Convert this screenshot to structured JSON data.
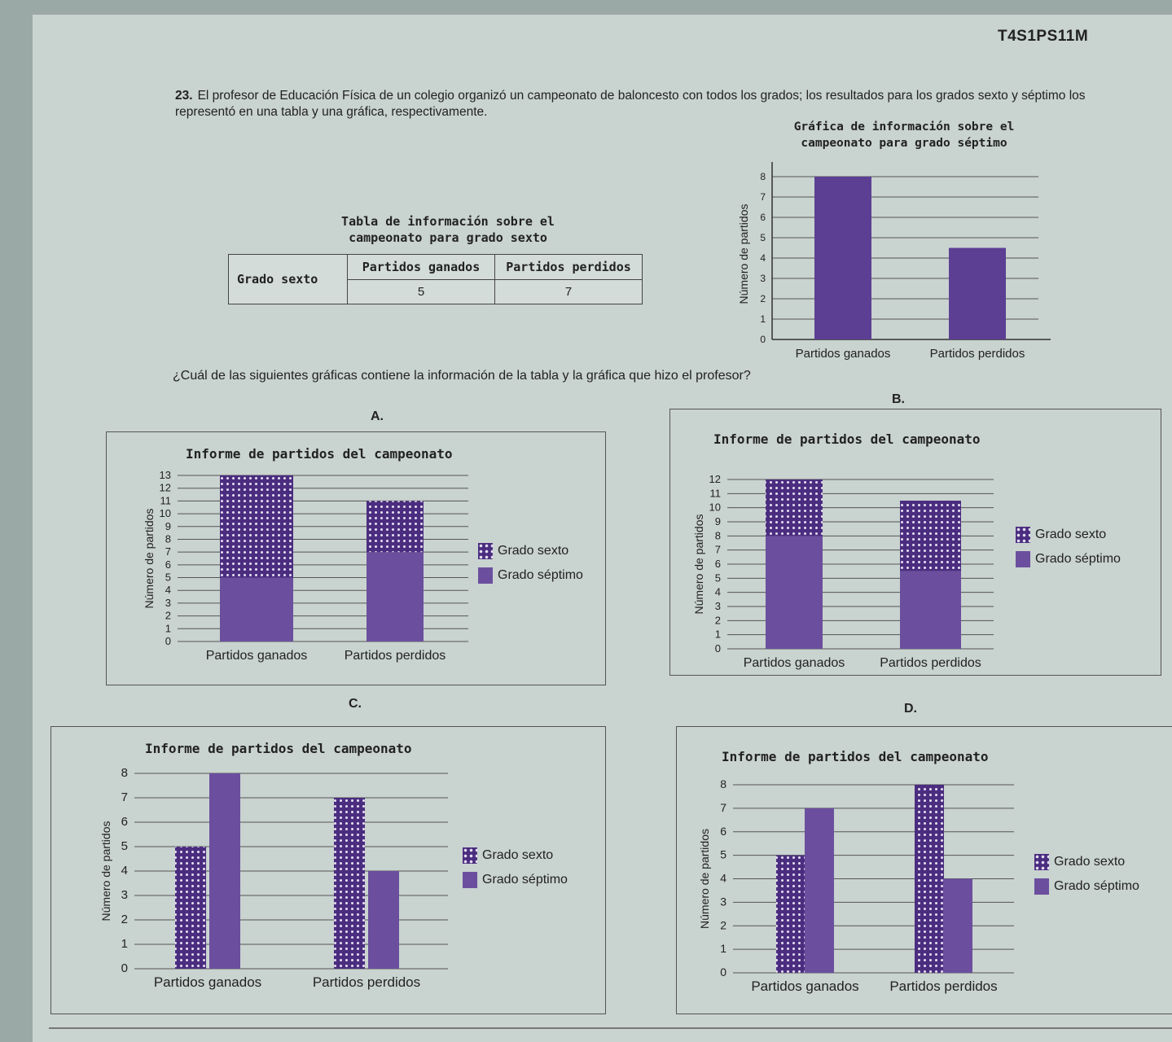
{
  "code": "T4S1PS11M",
  "question": {
    "number": "23.",
    "text": "El profesor de Educación Física de un colegio organizó un campeonato de baloncesto con todos los grados; los resultados para los grados sexto y séptimo los representó en una tabla y una gráfica, respectivamente.",
    "ask": "¿Cuál de las siguientes gráficas contiene la información de la tabla y la gráfica que hizo el profesor?"
  },
  "table": {
    "caption_line1": "Tabla de información sobre el",
    "caption_line2": "campeonato para grado sexto",
    "row_header": "Grado sexto",
    "columns": [
      "Partidos ganados",
      "Partidos perdidos"
    ],
    "values": [
      "5",
      "7"
    ]
  },
  "graph_caption_line1": "Gráfica de información sobre el",
  "graph_caption_line2": "campeonato para grado séptimo",
  "options": {
    "a": "A.",
    "b": "B.",
    "c": "C.",
    "d": "D.",
    "title": "Informe de partidos del campeonato",
    "legend_sexto": "Grado sexto",
    "legend_septimo": "Grado séptimo"
  },
  "chart_data": [
    {
      "id": "septimo",
      "type": "bar",
      "categories": [
        "Partidos ganados",
        "Partidos perdidos"
      ],
      "series": [
        {
          "name": "Grado séptimo",
          "values": [
            8,
            4.5
          ]
        }
      ],
      "ylabel": "Número de partidos",
      "yticks": [
        0,
        1,
        2,
        3,
        4,
        5,
        6,
        7,
        8
      ],
      "ylim": [
        0,
        8.4
      ]
    },
    {
      "id": "A",
      "type": "bar",
      "stacked": true,
      "title": "Informe de partidos del campeonato",
      "categories": [
        "Partidos ganados",
        "Partidos perdidos"
      ],
      "series": [
        {
          "name": "Grado séptimo",
          "values": [
            5,
            7
          ]
        },
        {
          "name": "Grado sexto",
          "values": [
            8,
            4
          ]
        }
      ],
      "ylabel": "Número de partidos",
      "yticks": [
        0,
        1,
        2,
        3,
        4,
        5,
        6,
        7,
        8,
        9,
        10,
        11,
        12,
        13
      ],
      "ylim": [
        0,
        13
      ]
    },
    {
      "id": "B",
      "type": "bar",
      "stacked": true,
      "title": "Informe de partidos del campeonato",
      "categories": [
        "Partidos ganados",
        "Partidos perdidos"
      ],
      "series": [
        {
          "name": "Grado séptimo",
          "values": [
            8,
            5.5
          ]
        },
        {
          "name": "Grado sexto",
          "values": [
            4,
            5
          ]
        }
      ],
      "ylabel": "Número de partidos",
      "yticks": [
        0,
        1,
        2,
        3,
        4,
        5,
        6,
        7,
        8,
        9,
        10,
        11,
        12
      ],
      "ylim": [
        0,
        12
      ]
    },
    {
      "id": "C",
      "type": "bar",
      "title": "Informe de partidos del campeonato",
      "categories": [
        "Partidos ganados",
        "Partidos perdidos"
      ],
      "series": [
        {
          "name": "Grado sexto",
          "values": [
            5,
            7
          ]
        },
        {
          "name": "Grado séptimo",
          "values": [
            8,
            4
          ]
        }
      ],
      "ylabel": "Número de partidos",
      "yticks": [
        0,
        1,
        2,
        3,
        4,
        5,
        6,
        7,
        8
      ],
      "ylim": [
        0,
        8
      ]
    },
    {
      "id": "D",
      "type": "bar",
      "title": "Informe de partidos del campeonato",
      "categories": [
        "Partidos ganados",
        "Partidos perdidos"
      ],
      "series": [
        {
          "name": "Grado sexto",
          "values": [
            5,
            8
          ]
        },
        {
          "name": "Grado séptimo",
          "values": [
            7,
            4
          ]
        }
      ],
      "ylabel": "Número de partidos",
      "yticks": [
        0,
        1,
        2,
        3,
        4,
        5,
        6,
        7,
        8
      ],
      "ylim": [
        0,
        8
      ]
    }
  ]
}
